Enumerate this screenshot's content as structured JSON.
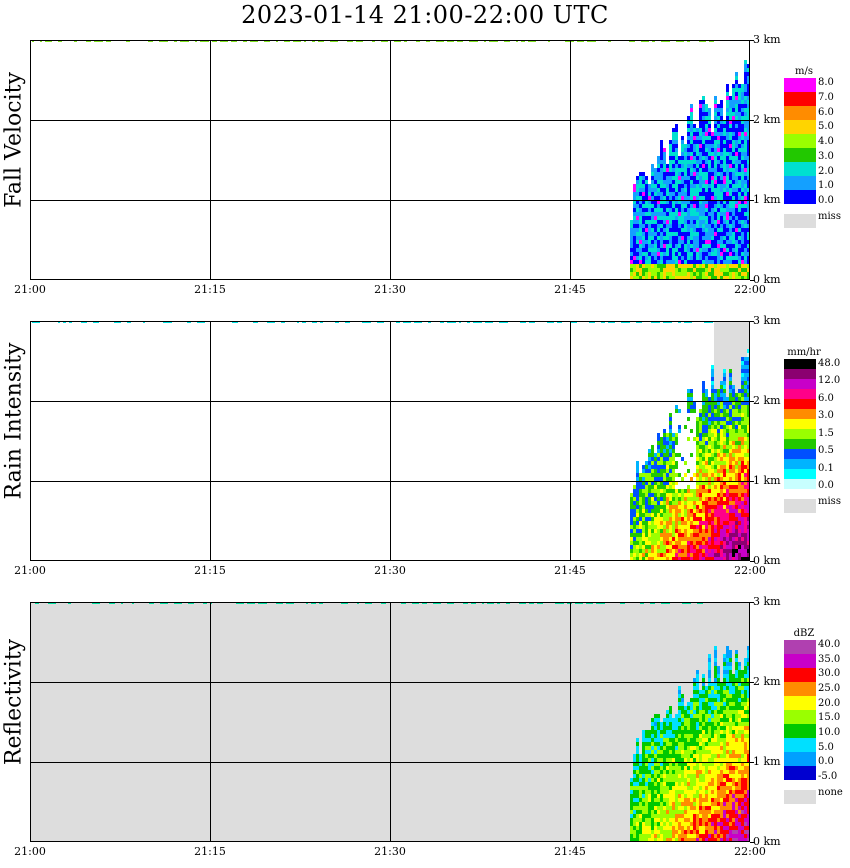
{
  "title": "2023-01-14   21:00-22:00 UTC",
  "x_ticks": [
    "21:00",
    "21:15",
    "21:30",
    "21:45",
    "22:00"
  ],
  "height_ticks": [
    "0 km",
    "1 km",
    "2 km",
    "3 km"
  ],
  "chart_data": [
    {
      "type": "heatmap",
      "ylabel": "Fall Velocity",
      "xlabel": "",
      "xlim": [
        "21:00",
        "22:00"
      ],
      "ylim_km": [
        0,
        3
      ],
      "background": "#ffffff",
      "colorbar": {
        "units": "m/s",
        "colors": [
          "#ff00ff",
          "#ff0000",
          "#ff8c00",
          "#ffd400",
          "#9aff00",
          "#22c800",
          "#00e0d0",
          "#14a0ff",
          "#0000ff"
        ],
        "labels": [
          "8.0",
          "7.0",
          "6.0",
          "5.0",
          "4.0",
          "3.0",
          "2.0",
          "1.0",
          "0.0"
        ],
        "missing_label": "miss",
        "missing_color": "#dddddd"
      },
      "echo_region": {
        "start": "21:50",
        "end": "22:00",
        "max_height_km": 2.9
      },
      "surface_band": {
        "top_km": 0.25,
        "colors": [
          "#ffd400",
          "#9aff00",
          "#22c800"
        ]
      },
      "clutter_height_km": 3.0,
      "clutter_color": "#7fe020"
    },
    {
      "type": "heatmap",
      "ylabel": "Rain Intensity",
      "xlabel": "",
      "xlim": [
        "21:00",
        "22:00"
      ],
      "ylim_km": [
        0,
        3
      ],
      "background": "#ffffff",
      "colorbar": {
        "units": "mm/hr",
        "colors": [
          "#000000",
          "#8b0070",
          "#c800c8",
          "#ff0088",
          "#ff0000",
          "#ff8c00",
          "#ffff00",
          "#9aff00",
          "#22c800",
          "#0050ff",
          "#00b4ff",
          "#00ffff",
          "#c8ffff"
        ],
        "labels": [
          "48.0",
          "12.0",
          "6.0",
          "3.0",
          "1.5",
          "0.5",
          "0.1",
          "0.0"
        ],
        "missing_label": "miss",
        "missing_color": "#dddddd"
      },
      "missing_region": {
        "start": "21:57",
        "end": "22:00"
      },
      "echo_region": {
        "start": "21:50",
        "end": "22:00",
        "max_height_km": 2.9
      },
      "clutter_height_km": 3.0,
      "clutter_color": "#00e0e0"
    },
    {
      "type": "heatmap",
      "ylabel": "Reflectivity",
      "xlabel": "",
      "xlim": [
        "21:00",
        "22:00"
      ],
      "ylim_km": [
        0,
        3
      ],
      "background": "#dddddd",
      "colorbar": {
        "units": "dBZ",
        "colors": [
          "#b040b0",
          "#c800c8",
          "#ff0000",
          "#ff8c00",
          "#ffff00",
          "#9aff00",
          "#00c800",
          "#00e0ff",
          "#00a0ff",
          "#0000d0"
        ],
        "labels": [
          "40.0",
          "35.0",
          "30.0",
          "25.0",
          "20.0",
          "15.0",
          "10.0",
          "5.0",
          "0.0",
          "-5.0"
        ],
        "missing_label": "none",
        "missing_color": "#dddddd"
      },
      "echo_region": {
        "start": "21:50",
        "end": "22:00",
        "max_height_km": 2.9
      },
      "clutter_height_km": 3.0,
      "clutter_color": "#00e0a0"
    }
  ]
}
